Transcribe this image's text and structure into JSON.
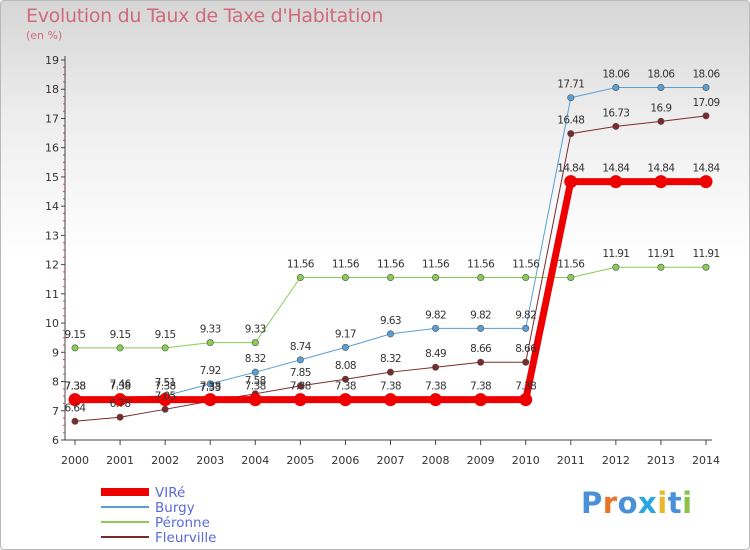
{
  "title": "Evolution du Taux de Taxe d'Habitation",
  "subtitle": "(en %)",
  "logo": {
    "letters": [
      "P",
      "r",
      "o",
      "x",
      "i",
      "t",
      "i"
    ],
    "colors": [
      "#4a90d9",
      "#e8742a",
      "#4a90d9",
      "#2aa7e0",
      "#e8b92a",
      "#4a90d9",
      "#8bc34a"
    ]
  },
  "chart_data": {
    "type": "line",
    "x": [
      2000,
      2001,
      2002,
      2003,
      2004,
      2005,
      2006,
      2007,
      2008,
      2009,
      2010,
      2011,
      2012,
      2013,
      2014
    ],
    "ylim": [
      6,
      19
    ],
    "yticks": [
      6,
      7,
      8,
      9,
      10,
      11,
      12,
      13,
      14,
      15,
      16,
      17,
      18,
      19
    ],
    "grid": false,
    "legend": "bottom-left",
    "series": [
      {
        "name": "VIRé",
        "color": "#ee0000",
        "width": 7,
        "labelColor": "#333333",
        "values": [
          7.38,
          7.38,
          7.38,
          7.38,
          7.38,
          7.38,
          7.38,
          7.38,
          7.38,
          7.38,
          7.38,
          14.84,
          14.84,
          14.84,
          14.84
        ]
      },
      {
        "name": "Burgy",
        "color": "#5a9fd4",
        "width": 1,
        "labelColor": "#333333",
        "values": [
          7.38,
          7.46,
          7.51,
          7.92,
          8.32,
          8.74,
          9.17,
          9.63,
          9.82,
          9.82,
          9.82,
          17.71,
          18.06,
          18.06,
          18.06
        ]
      },
      {
        "name": "Péronne",
        "color": "#88cc55",
        "width": 1,
        "labelColor": "#333333",
        "values": [
          9.15,
          9.15,
          9.15,
          9.33,
          9.33,
          11.56,
          11.56,
          11.56,
          11.56,
          11.56,
          11.56,
          11.56,
          11.91,
          11.91,
          11.91
        ]
      },
      {
        "name": "Fleurville",
        "color": "#7a2a2a",
        "width": 1,
        "labelColor": "#333333",
        "values": [
          6.64,
          6.78,
          7.05,
          7.33,
          7.58,
          7.85,
          8.08,
          8.32,
          8.49,
          8.66,
          8.66,
          16.48,
          16.73,
          16.9,
          17.09
        ]
      }
    ]
  }
}
